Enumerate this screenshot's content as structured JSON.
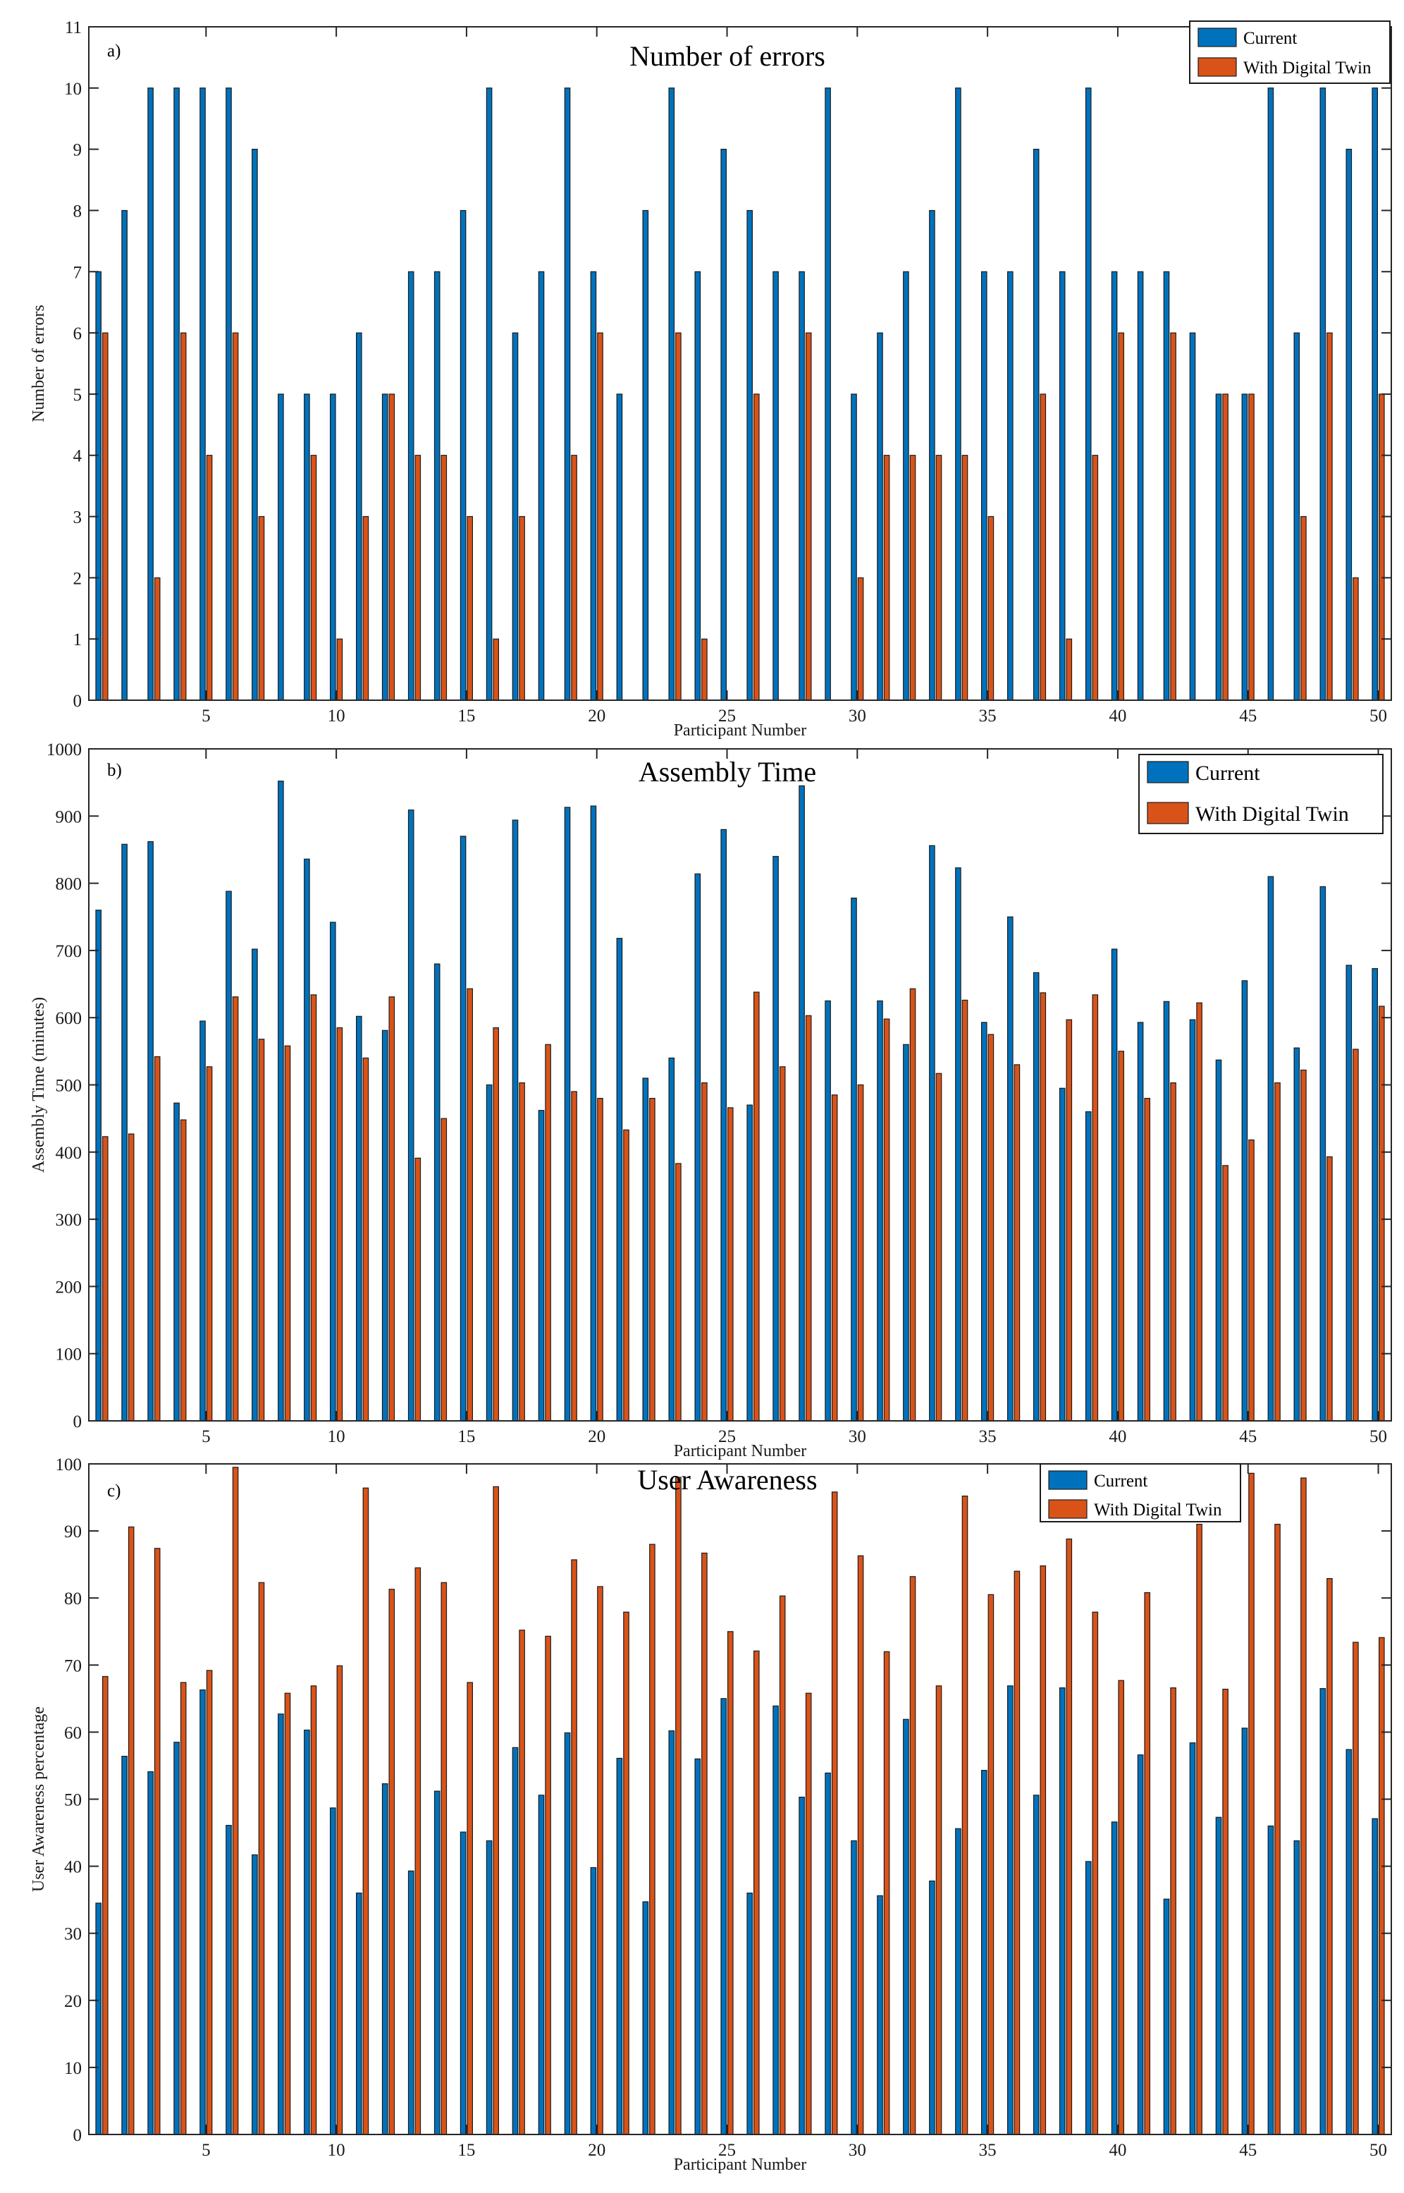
{
  "colors": {
    "current": "#0072BD",
    "digital_twin": "#D95319",
    "axis": "#262626"
  },
  "chart_data": [
    {
      "type": "bar",
      "panel_label": "a)",
      "title": "Number of errors",
      "xlabel": "Participant Number",
      "ylabel": "Number of errors",
      "ylim": [
        0,
        11
      ],
      "xlim": [
        0.5,
        50.5
      ],
      "yticks": [
        0,
        1,
        2,
        3,
        4,
        5,
        6,
        7,
        8,
        9,
        10,
        11
      ],
      "ytick_labels": [
        "0",
        "1",
        "2",
        "3",
        "4",
        "5",
        "6",
        "7",
        "8",
        "9",
        "10",
        "11"
      ],
      "xticks": [
        5,
        10,
        15,
        20,
        25,
        30,
        35,
        40,
        45,
        50
      ],
      "xtick_labels": [
        "5",
        "10",
        "15",
        "20",
        "25",
        "30",
        "35",
        "40",
        "45",
        "50"
      ],
      "legend_position": "top-right",
      "series": [
        {
          "name": "Current",
          "values": [
            7,
            8,
            10,
            10,
            10,
            10,
            9,
            5,
            5,
            5,
            6,
            5,
            7,
            7,
            8,
            10,
            6,
            7,
            10,
            7,
            5,
            8,
            10,
            7,
            9,
            8,
            7,
            7,
            10,
            5,
            6,
            7,
            8,
            10,
            7,
            7,
            9,
            7,
            10,
            7,
            7,
            7,
            6,
            5,
            5,
            10,
            6,
            10,
            9,
            10
          ]
        },
        {
          "name": "With Digital Twin",
          "values": [
            6,
            0,
            2,
            6,
            4,
            6,
            3,
            0,
            4,
            1,
            3,
            5,
            4,
            4,
            3,
            1,
            3,
            0,
            4,
            6,
            0,
            0,
            6,
            1,
            0,
            5,
            0,
            6,
            0,
            2,
            4,
            4,
            4,
            4,
            3,
            0,
            5,
            1,
            4,
            6,
            0,
            6,
            0,
            5,
            5,
            0,
            3,
            6,
            2,
            5
          ]
        }
      ]
    },
    {
      "type": "bar",
      "panel_label": "b)",
      "title": "Assembly Time",
      "xlabel": "Participant Number",
      "ylabel": "Assembly Time (minutes)",
      "ylim": [
        0,
        1000
      ],
      "xlim": [
        0.5,
        50.5
      ],
      "yticks": [
        0,
        100,
        200,
        300,
        400,
        500,
        600,
        700,
        800,
        900,
        1000
      ],
      "ytick_labels": [
        "0",
        "100",
        "200",
        "300",
        "400",
        "500",
        "600",
        "700",
        "800",
        "900",
        "1000"
      ],
      "xticks": [
        5,
        10,
        15,
        20,
        25,
        30,
        35,
        40,
        45,
        50
      ],
      "xtick_labels": [
        "5",
        "10",
        "15",
        "20",
        "25",
        "30",
        "35",
        "40",
        "45",
        "50"
      ],
      "legend_position": "top-right",
      "series": [
        {
          "name": "Current",
          "values": [
            760,
            858,
            862,
            473,
            595,
            788,
            702,
            952,
            836,
            742,
            602,
            581,
            909,
            680,
            870,
            500,
            894,
            462,
            913,
            915,
            718,
            510,
            540,
            814,
            880,
            470,
            840,
            945,
            625,
            778,
            625,
            560,
            856,
            823,
            593,
            750,
            667,
            495,
            460,
            702,
            593,
            624,
            597,
            537,
            655,
            810,
            555,
            795,
            678,
            673
          ]
        },
        {
          "name": "With Digital Twin",
          "values": [
            423,
            427,
            542,
            448,
            527,
            631,
            568,
            558,
            634,
            585,
            540,
            631,
            391,
            450,
            643,
            585,
            503,
            560,
            490,
            480,
            433,
            480,
            383,
            503,
            466,
            638,
            527,
            603,
            485,
            500,
            598,
            643,
            517,
            626,
            575,
            530,
            637,
            597,
            634,
            550,
            480,
            503,
            622,
            380,
            418,
            503,
            522,
            393,
            553,
            617
          ]
        }
      ]
    },
    {
      "type": "bar",
      "panel_label": "c)",
      "title": "User Awareness",
      "xlabel": "Participant Number",
      "ylabel": "User Awareness percentage",
      "ylim": [
        0,
        100
      ],
      "xlim": [
        0.5,
        50.5
      ],
      "yticks": [
        0,
        10,
        20,
        30,
        40,
        50,
        60,
        70,
        80,
        90,
        100
      ],
      "ytick_labels": [
        "0",
        "10",
        "20",
        "30",
        "40",
        "50",
        "60",
        "70",
        "80",
        "90",
        "100"
      ],
      "xticks": [
        5,
        10,
        15,
        20,
        25,
        30,
        35,
        40,
        45,
        50
      ],
      "xtick_labels": [
        "5",
        "10",
        "15",
        "20",
        "25",
        "30",
        "35",
        "40",
        "45",
        "50"
      ],
      "legend_position": "top-right",
      "series": [
        {
          "name": "Current",
          "values": [
            34.5,
            56.4,
            54.1,
            58.5,
            66.3,
            46.1,
            41.7,
            62.7,
            60.3,
            48.7,
            36.0,
            52.3,
            39.3,
            51.2,
            45.1,
            43.8,
            57.7,
            50.6,
            59.9,
            39.8,
            56.1,
            34.7,
            60.2,
            56.0,
            65.0,
            36.0,
            63.9,
            50.3,
            53.9,
            43.8,
            35.6,
            61.9,
            37.8,
            45.6,
            54.3,
            66.9,
            50.6,
            66.6,
            40.7,
            46.6,
            56.6,
            35.1,
            58.4,
            47.3,
            60.6,
            46.0,
            43.8,
            66.5,
            57.4,
            47.1
          ]
        },
        {
          "name": "With Digital Twin",
          "values": [
            68.3,
            90.6,
            87.4,
            67.4,
            69.2,
            99.5,
            82.3,
            65.8,
            66.9,
            69.9,
            96.4,
            81.3,
            84.5,
            82.3,
            67.4,
            96.6,
            75.2,
            74.3,
            85.7,
            81.7,
            77.9,
            88.0,
            98.0,
            86.7,
            75.0,
            72.1,
            80.3,
            65.8,
            95.8,
            86.3,
            72.0,
            83.2,
            66.9,
            95.2,
            80.5,
            84.0,
            84.8,
            88.8,
            77.9,
            67.7,
            80.8,
            66.6,
            91.0,
            66.4,
            98.6,
            91.0,
            97.9,
            82.9,
            73.4,
            74.1
          ]
        }
      ]
    }
  ]
}
